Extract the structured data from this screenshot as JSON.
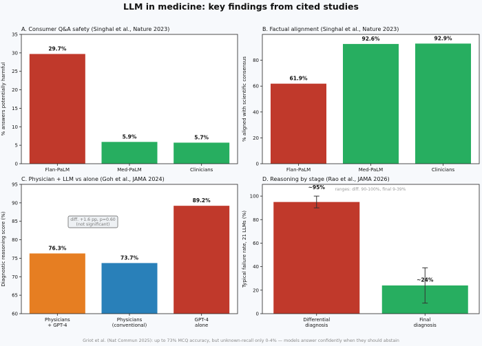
{
  "figure": {
    "title": "LLM in medicine: key findings from cited studies",
    "footnote": "Griot et al. (Nat Commun 2025): up to 73% MCQ accuracy, but unknown-recall only 0-4% — models answer confidently when they should abstain"
  },
  "colors": {
    "red": "#c0392b",
    "green": "#27ae60",
    "orange": "#e67e22",
    "blue": "#2980b9",
    "background": "#f7f9fc"
  },
  "chart_data": [
    {
      "id": "A",
      "type": "bar",
      "title": "A. Consumer Q&A safety (Singhal et al., Nature 2023)",
      "ylabel": "% answers potentially harmful",
      "ylim": [
        0,
        35
      ],
      "yticks": [
        0,
        5,
        10,
        15,
        20,
        25,
        30,
        35
      ],
      "categories": [
        "Flan-PaLM",
        "Med-PaLM",
        "Clinicians"
      ],
      "values": [
        29.7,
        5.9,
        5.7
      ],
      "value_labels": [
        "29.7%",
        "5.9%",
        "5.7%"
      ],
      "colors": [
        "#c0392b",
        "#27ae60",
        "#27ae60"
      ]
    },
    {
      "id": "B",
      "type": "bar",
      "title": "B. Factual alignment (Singhal et al., Nature 2023)",
      "ylabel": "% aligned with scientific consensus",
      "ylim": [
        0,
        100
      ],
      "yticks": [
        0,
        20,
        40,
        60,
        80
      ],
      "categories": [
        "Flan-PaLM",
        "Med-PaLM",
        "Clinicians"
      ],
      "values": [
        61.9,
        92.6,
        92.9
      ],
      "value_labels": [
        "61.9%",
        "92.6%",
        "92.9%"
      ],
      "colors": [
        "#c0392b",
        "#27ae60",
        "#27ae60"
      ]
    },
    {
      "id": "C",
      "type": "bar",
      "title": "C. Physician + LLM vs alone (Goh et al., JAMA 2024)",
      "ylabel": "Diagnostic reasoning score (%)",
      "ylim": [
        60,
        95
      ],
      "yticks": [
        60,
        65,
        70,
        75,
        80,
        85,
        90,
        95
      ],
      "categories": [
        [
          "Physicians",
          "+ GPT-4"
        ],
        [
          "Physicians",
          "(conventional)"
        ],
        [
          "GPT-4",
          "alone"
        ]
      ],
      "values": [
        76.3,
        73.7,
        89.2
      ],
      "value_labels": [
        "76.3%",
        "73.7%",
        "89.2%"
      ],
      "colors": [
        "#e67e22",
        "#2980b9",
        "#c0392b"
      ],
      "annotation": [
        "diff. +1.6 pp, p=0.60",
        "(not significant)"
      ]
    },
    {
      "id": "D",
      "type": "bar",
      "title": "D. Reasoning by stage (Rao et al., JAMA 2026)",
      "ylabel": "Typical failure rate, 21 LLMs (%)",
      "ylim": [
        0,
        110
      ],
      "yticks": [
        0,
        20,
        40,
        60,
        80,
        100
      ],
      "categories": [
        [
          "Differential",
          "diagnosis"
        ],
        [
          "Final",
          "diagnosis"
        ]
      ],
      "values": [
        95,
        24
      ],
      "error_ranges": [
        [
          90,
          100
        ],
        [
          9,
          39
        ]
      ],
      "value_labels": [
        "~95%",
        "~24%"
      ],
      "colors": [
        "#c0392b",
        "#27ae60"
      ],
      "annotation": "ranges: diff. 90-100%, final 9-39%"
    }
  ]
}
